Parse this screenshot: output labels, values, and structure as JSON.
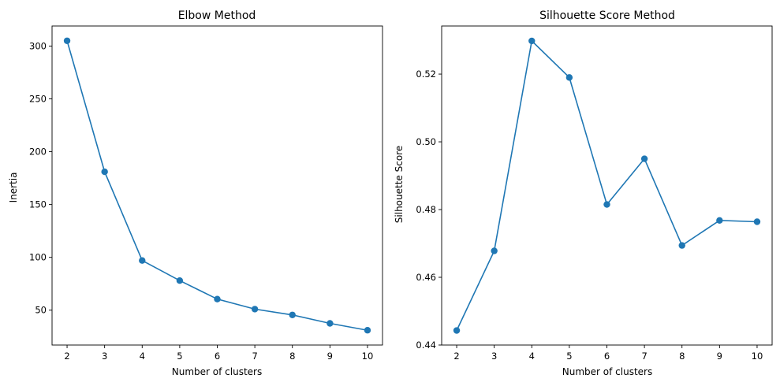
{
  "chart_data": [
    {
      "type": "line",
      "title": "Elbow Method",
      "xlabel": "Number of clusters",
      "ylabel": "Inertia",
      "x": [
        2,
        3,
        4,
        5,
        6,
        7,
        8,
        9,
        10
      ],
      "series": [
        {
          "values": [
            305,
            181,
            97,
            78,
            60.5,
            51,
            45.5,
            37.5,
            31
          ],
          "marker": "circle"
        }
      ],
      "xlim": [
        1.6,
        10.4
      ],
      "ylim": [
        17,
        319
      ],
      "xticks": [
        2,
        3,
        4,
        5,
        6,
        7,
        8,
        9,
        10
      ],
      "yticks": [
        50,
        100,
        150,
        200,
        250,
        300
      ],
      "grid": false,
      "color": "#1f77b4"
    },
    {
      "type": "line",
      "title": "Silhouette Score Method",
      "xlabel": "Number of clusters",
      "ylabel": "Silhouette Score",
      "x": [
        2,
        3,
        4,
        5,
        6,
        7,
        8,
        9,
        10
      ],
      "series": [
        {
          "values": [
            0.4443,
            0.4678,
            0.5298,
            0.519,
            0.4815,
            0.495,
            0.4694,
            0.4768,
            0.4764
          ],
          "marker": "circle"
        }
      ],
      "xlim": [
        1.6,
        10.4
      ],
      "ylim": [
        0.44,
        0.5342
      ],
      "xticks": [
        2,
        3,
        4,
        5,
        6,
        7,
        8,
        9,
        10
      ],
      "yticks": [
        0.44,
        0.46,
        0.48,
        0.5,
        0.52
      ],
      "ytick_labels": [
        "0.44",
        "0.46",
        "0.48",
        "0.50",
        "0.52"
      ],
      "grid": false,
      "color": "#1f77b4"
    }
  ]
}
